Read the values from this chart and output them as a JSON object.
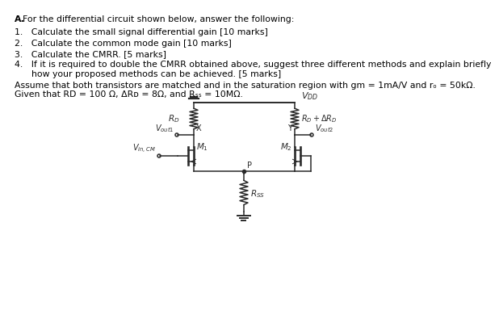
{
  "bg_color": "#ffffff",
  "text_color": "#000000",
  "circuit_color": "#2a2a2a",
  "label_color": "#000080",
  "title": "A.  For the differential circuit shown below, answer the following:",
  "items": [
    "1.   Calculate the small signal differential gain [10 marks]",
    "2.   Calculate the common mode gain [10 marks]",
    "3.   Calculate the CMRR. [5 marks]",
    "4.   If it is required to double the CMRR obtained above, suggest three different methods and explain briefly",
    "      how your proposed methods can be achieved. [5 marks]"
  ],
  "assume": "Assume that both transistors are matched and in the saturation region with gm = 1mA/V and rₒ = 50kΩ.",
  "given": "Given that RD = 100 Ω, ΔRᴅ = 8Ω, and Rₛₛ = 10MΩ.",
  "fs_text": 7.8,
  "fs_label": 7.5,
  "fs_circuit": 7.5
}
